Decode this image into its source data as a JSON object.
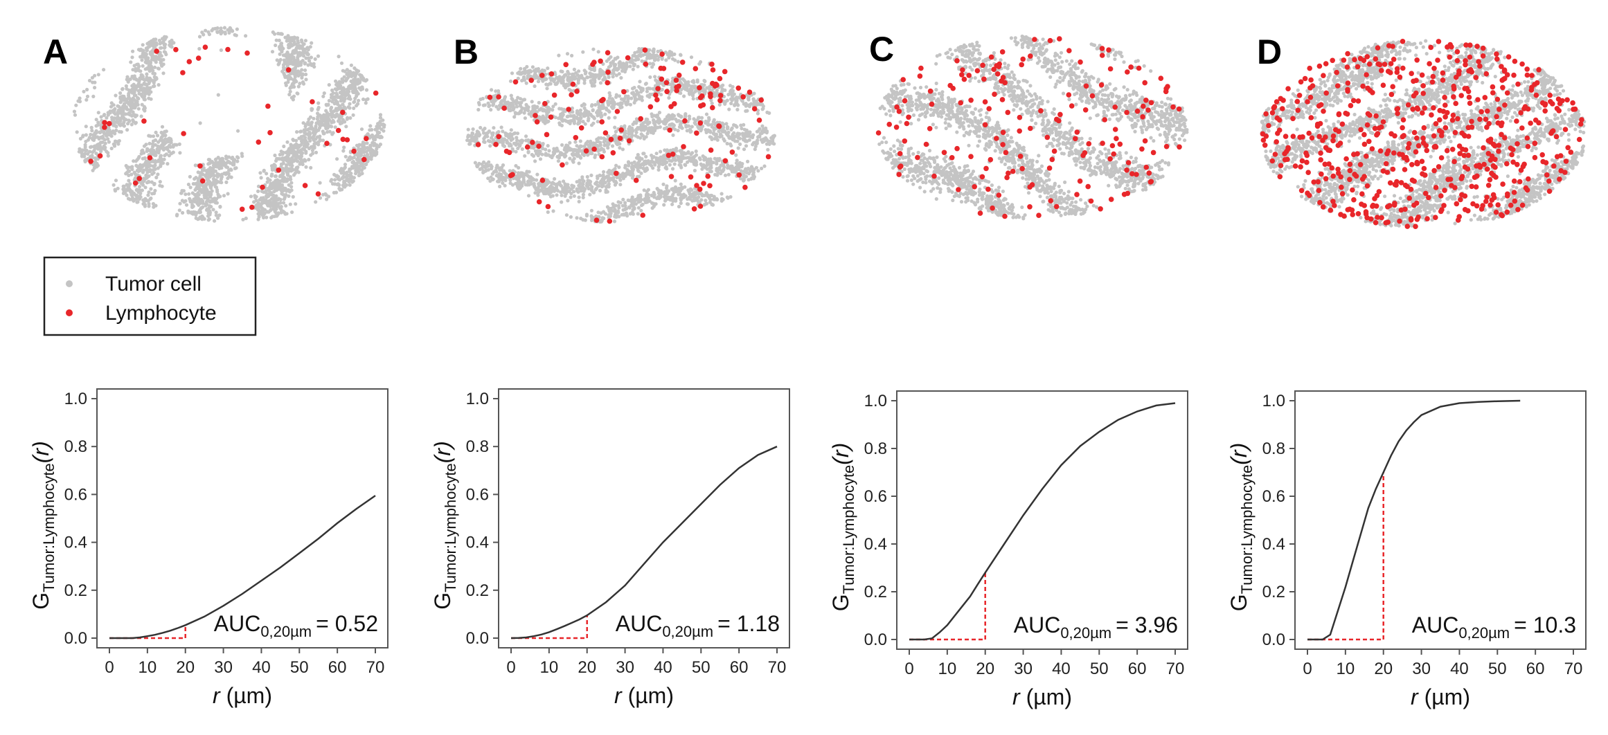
{
  "legend": {
    "tumor_label": "Tumor cell",
    "lymphocyte_label": "Lymphocyte"
  },
  "colors": {
    "tumor": "#c4c4c4",
    "lymphocyte": "#e8262a",
    "curve": "#333333",
    "auc_guide": "#e8262a",
    "axis": "#222222"
  },
  "chart_data": [
    {
      "panel": "A",
      "type": "line",
      "ylabel_main": "G",
      "ylabel_sub": "Tumor:Lymphocyte",
      "ylabel_arg": "(r)",
      "xlabel_var": "r",
      "xlabel_unit": " (µm)",
      "xlim": [
        0,
        70
      ],
      "ylim": [
        0,
        1.0
      ],
      "xticks": [
        0,
        10,
        20,
        30,
        40,
        50,
        60,
        70
      ],
      "yticks": [
        0.0,
        0.2,
        0.4,
        0.6,
        0.8,
        1.0
      ],
      "x": [
        0,
        2,
        4,
        6,
        8,
        10,
        12,
        14,
        16,
        18,
        20,
        25,
        30,
        35,
        40,
        45,
        50,
        55,
        60,
        65,
        70
      ],
      "y": [
        0,
        0,
        0,
        0,
        0.003,
        0.008,
        0.014,
        0.022,
        0.031,
        0.042,
        0.054,
        0.09,
        0.135,
        0.185,
        0.24,
        0.295,
        0.355,
        0.415,
        0.48,
        0.54,
        0.595
      ],
      "auc_label": "AUC",
      "auc_sub": "0,20µm",
      "auc_value": "= 0.52",
      "auc_cutoff": 20,
      "scatter": {
        "tumor_count": 2600,
        "lymph_count": 40
      }
    },
    {
      "panel": "B",
      "type": "line",
      "ylabel_main": "G",
      "ylabel_sub": "Tumor:Lymphocyte",
      "ylabel_arg": "(r)",
      "xlabel_var": "r",
      "xlabel_unit": " (µm)",
      "xlim": [
        0,
        70
      ],
      "ylim": [
        0,
        1.0
      ],
      "xticks": [
        0,
        10,
        20,
        30,
        40,
        50,
        60,
        70
      ],
      "yticks": [
        0.0,
        0.2,
        0.4,
        0.6,
        0.8,
        1.0
      ],
      "x": [
        0,
        2,
        4,
        6,
        8,
        10,
        12,
        14,
        16,
        18,
        20,
        25,
        30,
        35,
        40,
        45,
        50,
        55,
        60,
        65,
        70
      ],
      "y": [
        0,
        0.001,
        0.003,
        0.008,
        0.015,
        0.025,
        0.037,
        0.05,
        0.064,
        0.078,
        0.095,
        0.15,
        0.22,
        0.31,
        0.4,
        0.48,
        0.56,
        0.64,
        0.71,
        0.765,
        0.8
      ],
      "auc_label": "AUC",
      "auc_sub": "0,20µm",
      "auc_value": "= 1.18",
      "auc_cutoff": 20,
      "scatter": {
        "tumor_count": 2800,
        "lymph_count": 130
      }
    },
    {
      "panel": "C",
      "type": "line",
      "ylabel_main": "G",
      "ylabel_sub": "Tumor:Lymphocyte",
      "ylabel_arg": "(r)",
      "xlabel_var": "r",
      "xlabel_unit": " (µm)",
      "xlim": [
        0,
        70
      ],
      "ylim": [
        0,
        1.0
      ],
      "xticks": [
        0,
        10,
        20,
        30,
        40,
        50,
        60,
        70
      ],
      "yticks": [
        0.0,
        0.2,
        0.4,
        0.6,
        0.8,
        1.0
      ],
      "x": [
        0,
        4,
        6,
        8,
        10,
        12,
        14,
        16,
        18,
        20,
        25,
        30,
        35,
        40,
        45,
        50,
        55,
        60,
        65,
        70
      ],
      "y": [
        0,
        0,
        0.005,
        0.03,
        0.06,
        0.1,
        0.14,
        0.18,
        0.23,
        0.28,
        0.4,
        0.52,
        0.63,
        0.73,
        0.81,
        0.87,
        0.92,
        0.955,
        0.98,
        0.99
      ],
      "auc_label": "AUC",
      "auc_sub": "0,20µm",
      "auc_value": "= 3.96",
      "auc_cutoff": 20,
      "scatter": {
        "tumor_count": 2600,
        "lymph_count": 160
      }
    },
    {
      "panel": "D",
      "type": "line",
      "ylabel_main": "G",
      "ylabel_sub": "Tumor:Lymphocyte",
      "ylabel_arg": "(r)",
      "xlabel_var": "r",
      "xlabel_unit": " (µm)",
      "xlim": [
        0,
        70
      ],
      "ylim": [
        0,
        1.0
      ],
      "xticks": [
        0,
        10,
        20,
        30,
        40,
        50,
        60,
        70
      ],
      "yticks": [
        0.0,
        0.2,
        0.4,
        0.6,
        0.8,
        1.0
      ],
      "x": [
        0,
        4,
        6,
        8,
        10,
        12,
        14,
        16,
        18,
        20,
        22,
        24,
        26,
        28,
        30,
        35,
        40,
        45,
        50,
        56
      ],
      "y": [
        0,
        0,
        0.02,
        0.12,
        0.22,
        0.33,
        0.44,
        0.55,
        0.63,
        0.7,
        0.77,
        0.83,
        0.875,
        0.91,
        0.94,
        0.975,
        0.99,
        0.995,
        0.998,
        1.0
      ],
      "auc_label": "AUC",
      "auc_sub": "0,20µm",
      "auc_value": "= 10.3",
      "auc_cutoff": 20,
      "scatter": {
        "tumor_count": 3400,
        "lymph_count": 560
      }
    }
  ]
}
